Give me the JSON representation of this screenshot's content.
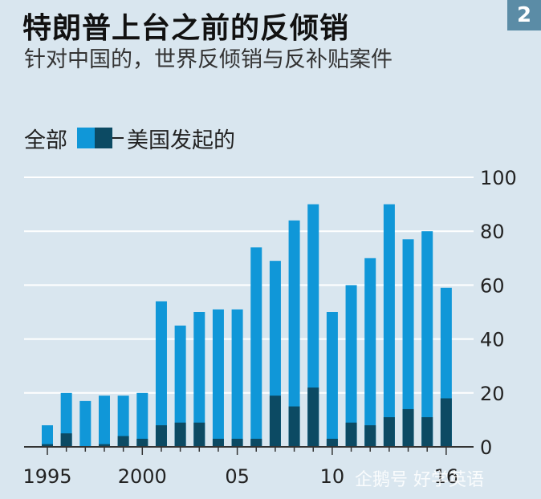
{
  "header": {
    "title": "特朗普上台之前的反倾销",
    "badge": "2",
    "subtitle": "针对中国的，世界反倾销与反补贴案件"
  },
  "legend": {
    "all_label": "全部",
    "us_label": "美国发起的"
  },
  "watermark": "企鹅号 好学英语",
  "colors": {
    "all": "#1097d8",
    "us": "#0c4a63",
    "background": "#d9e6ef",
    "gridline": "#ffffff"
  },
  "chart_data": {
    "type": "bar",
    "title": "特朗普上台之前的反倾销",
    "subtitle": "针对中国的，世界反倾销与反补贴案件",
    "categories": [
      "1995",
      "1996",
      "1997",
      "1998",
      "1999",
      "2000",
      "2001",
      "2002",
      "2003",
      "2004",
      "2005",
      "2006",
      "2007",
      "2008",
      "2009",
      "2010",
      "2011",
      "2012",
      "2013",
      "2014",
      "2015",
      "2016"
    ],
    "tick_labels": [
      "1995",
      "2000",
      "05",
      "10",
      "16"
    ],
    "series": [
      {
        "name": "全部",
        "values": [
          8,
          20,
          17,
          19,
          19,
          20,
          54,
          45,
          50,
          51,
          51,
          74,
          69,
          84,
          90,
          50,
          60,
          70,
          90,
          77,
          80,
          59
        ]
      },
      {
        "name": "美国发起的",
        "values": [
          1,
          5,
          0,
          1,
          4,
          3,
          8,
          9,
          9,
          3,
          3,
          3,
          19,
          15,
          22,
          3,
          9,
          8,
          11,
          14,
          11,
          18
        ]
      }
    ],
    "ylim": [
      0,
      100
    ],
    "yticks": [
      "0",
      "20",
      "40",
      "60",
      "80",
      "100"
    ],
    "ytick_values": [
      0,
      20,
      40,
      60,
      80,
      100
    ],
    "yaxis_position": "right",
    "grid": true
  }
}
